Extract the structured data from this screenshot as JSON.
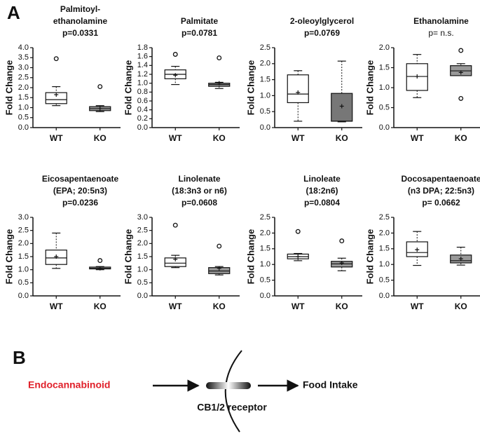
{
  "panel_a_label": "A",
  "chart_data": [
    {
      "type": "box",
      "title": [
        "Palmitoyl-",
        "ethanolamine"
      ],
      "subtitle": "p=0.0331",
      "ylabel": "Fold Change",
      "categories": [
        "WT",
        "KO"
      ],
      "ylim": [
        0,
        4
      ],
      "yticks": [
        {
          "value": 0,
          "label": "0.0"
        },
        0.5,
        {
          "value": 1,
          "label": "1.0"
        },
        1.5,
        {
          "value": 2,
          "label": "2.0"
        },
        2.5,
        {
          "value": 3,
          "label": "3.0"
        },
        3.5,
        {
          "value": 4,
          "label": "4.0"
        }
      ],
      "colors": [
        "#ffffff",
        "#999999"
      ],
      "boxes": [
        {
          "min": 1.1,
          "q1": 1.2,
          "median": 1.4,
          "q3": 1.75,
          "max": 2.05,
          "mean": 1.65,
          "outliers": [
            3.45
          ]
        },
        {
          "min": 0.8,
          "q1": 0.85,
          "median": 0.95,
          "q3": 1.05,
          "max": 1.1,
          "mean": 0.95,
          "outliers": [
            2.05
          ]
        }
      ]
    },
    {
      "type": "box",
      "title": [
        "Palmitate"
      ],
      "subtitle": "p=0.0781",
      "ylabel": "Fold Change",
      "categories": [
        "WT",
        "KO"
      ],
      "ylim": [
        0,
        1.8
      ],
      "yticks": [
        {
          "value": 0,
          "label": "0.0"
        },
        0.2,
        0.4,
        0.6,
        0.8,
        {
          "value": 1,
          "label": "1.0"
        },
        1.2,
        1.4,
        1.6,
        1.8
      ],
      "colors": [
        "#ffffff",
        "#999999"
      ],
      "boxes": [
        {
          "min": 0.97,
          "q1": 1.1,
          "median": 1.2,
          "q3": 1.3,
          "max": 1.38,
          "mean": 1.18,
          "outliers": [
            1.65
          ]
        },
        {
          "min": 0.88,
          "q1": 0.93,
          "median": 0.97,
          "q3": 1.0,
          "max": 1.02,
          "mean": 1.0,
          "outliers": [
            1.57
          ]
        }
      ]
    },
    {
      "type": "box",
      "title": [
        "2-oleoylglycerol"
      ],
      "subtitle": "p=0.0769",
      "ylabel": "Fold Change",
      "categories": [
        "WT",
        "KO"
      ],
      "ylim": [
        0,
        2.5
      ],
      "yticks": [
        {
          "value": 0,
          "label": "0.0"
        },
        0.5,
        {
          "value": 1,
          "label": "1.0"
        },
        1.5,
        {
          "value": 2,
          "label": "2.0"
        },
        2.5
      ],
      "colors": [
        "#ffffff",
        "#777777"
      ],
      "boxes": [
        {
          "min": 0.2,
          "q1": 0.78,
          "median": 1.05,
          "q3": 1.65,
          "max": 1.78,
          "mean": 1.1,
          "outliers": []
        },
        {
          "min": 0.18,
          "q1": 0.2,
          "median": 0.2,
          "q3": 1.07,
          "max": 2.08,
          "mean": 0.67,
          "outliers": []
        }
      ]
    },
    {
      "type": "box",
      "title": [
        "Ethanolamine"
      ],
      "subtitle": "p= n.s.",
      "subtitle_weight": "normal",
      "ylabel": "Fold Change",
      "categories": [
        "WT",
        "KO"
      ],
      "ylim": [
        0,
        2
      ],
      "yticks": [
        {
          "value": 0,
          "label": "0.0"
        },
        0.5,
        {
          "value": 1,
          "label": "1.0"
        },
        1.5,
        {
          "value": 2,
          "label": "2.0"
        }
      ],
      "colors": [
        "#ffffff",
        "#999999"
      ],
      "boxes": [
        {
          "min": 0.75,
          "q1": 0.93,
          "median": 1.28,
          "q3": 1.6,
          "max": 1.83,
          "mean": 1.28,
          "outliers": []
        },
        {
          "min": 1.3,
          "q1": 1.3,
          "median": 1.42,
          "q3": 1.55,
          "max": 1.6,
          "mean": 1.38,
          "outliers": [
            1.93,
            0.73
          ]
        }
      ]
    },
    {
      "type": "box",
      "title": [
        "Eicosapentaenoate",
        "(EPA; 20:5n3)"
      ],
      "subtitle": "p=0.0236",
      "ylabel": "Fold Change",
      "categories": [
        "WT",
        "KO"
      ],
      "ylim": [
        0,
        3
      ],
      "yticks": [
        {
          "value": 0,
          "label": "0.0"
        },
        0.5,
        {
          "value": 1,
          "label": "1.0"
        },
        1.5,
        {
          "value": 2,
          "label": "2.0"
        },
        2.5,
        {
          "value": 3,
          "label": "3.0"
        }
      ],
      "colors": [
        "#ffffff",
        "#999999"
      ],
      "boxes": [
        {
          "min": 1.05,
          "q1": 1.2,
          "median": 1.45,
          "q3": 1.75,
          "max": 2.4,
          "mean": 1.5,
          "outliers": []
        },
        {
          "min": 1.0,
          "q1": 1.03,
          "median": 1.05,
          "q3": 1.1,
          "max": 1.12,
          "mean": 1.05,
          "outliers": [
            1.35
          ]
        }
      ]
    },
    {
      "type": "box",
      "title": [
        "Linolenate",
        "(18:3n3 or n6)"
      ],
      "subtitle": "p=0.0608",
      "ylabel": "Fold Change",
      "categories": [
        "WT",
        "KO"
      ],
      "ylim": [
        0,
        3
      ],
      "yticks": [
        {
          "value": 0,
          "label": "0.0"
        },
        0.5,
        {
          "value": 1,
          "label": "1.0"
        },
        1.5,
        {
          "value": 2,
          "label": "2.0"
        },
        2.5,
        {
          "value": 3,
          "label": "3.0"
        }
      ],
      "colors": [
        "#ffffff",
        "#999999"
      ],
      "boxes": [
        {
          "min": 1.08,
          "q1": 1.12,
          "median": 1.25,
          "q3": 1.45,
          "max": 1.55,
          "mean": 1.4,
          "outliers": [
            2.7
          ]
        },
        {
          "min": 0.8,
          "q1": 0.85,
          "median": 0.95,
          "q3": 1.08,
          "max": 1.12,
          "mean": 1.05,
          "outliers": [
            1.9
          ]
        }
      ]
    },
    {
      "type": "box",
      "title": [
        "Linoleate",
        "(18:2n6)"
      ],
      "subtitle": "p=0.0804",
      "ylabel": "Fold Change",
      "categories": [
        "WT",
        "KO"
      ],
      "ylim": [
        0,
        2.5
      ],
      "yticks": [
        {
          "value": 0,
          "label": "0.0"
        },
        0.5,
        {
          "value": 1,
          "label": "1.0"
        },
        1.5,
        {
          "value": 2,
          "label": "2.0"
        },
        2.5
      ],
      "colors": [
        "#ffffff",
        "#999999"
      ],
      "boxes": [
        {
          "min": 1.12,
          "q1": 1.18,
          "median": 1.25,
          "q3": 1.33,
          "max": 1.35,
          "mean": 1.25,
          "outliers": [
            2.05
          ]
        },
        {
          "min": 0.8,
          "q1": 0.92,
          "median": 1.02,
          "q3": 1.1,
          "max": 1.2,
          "mean": 1.05,
          "outliers": [
            1.75
          ]
        }
      ]
    },
    {
      "type": "box",
      "title": [
        "Docosapentaenoate",
        "(n3 DPA; 22:5n3)"
      ],
      "subtitle": "p= 0.0662",
      "ylabel": "Fold Change",
      "categories": [
        "WT",
        "KO"
      ],
      "ylim": [
        0,
        2.5
      ],
      "yticks": [
        {
          "value": 0,
          "label": "0.0"
        },
        0.5,
        {
          "value": 1,
          "label": "1.0"
        },
        1.5,
        {
          "value": 2,
          "label": "2.0"
        },
        2.5
      ],
      "colors": [
        "#ffffff",
        "#999999"
      ],
      "boxes": [
        {
          "min": 0.97,
          "q1": 1.25,
          "median": 1.38,
          "q3": 1.72,
          "max": 2.05,
          "mean": 1.47,
          "outliers": []
        },
        {
          "min": 0.98,
          "q1": 1.05,
          "median": 1.12,
          "q3": 1.3,
          "max": 1.55,
          "mean": 1.18,
          "outliers": []
        }
      ]
    }
  ],
  "panel_b": {
    "label": "B",
    "ligand": "Endocannabinoid",
    "receptor": "CB1/2 receptor",
    "outcome": "Food Intake"
  }
}
